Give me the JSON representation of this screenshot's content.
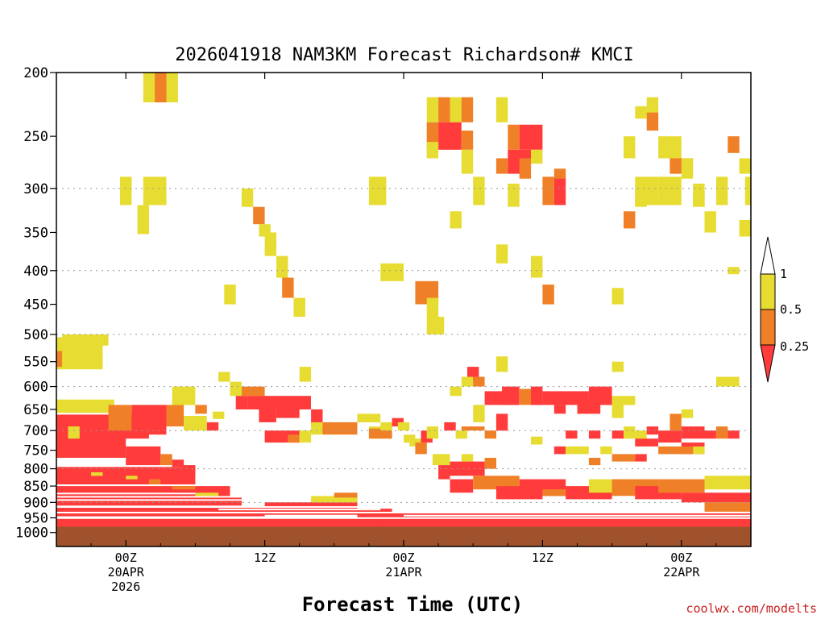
{
  "chart_data": {
    "type": "heatmap",
    "title": "2026041918 NAM3KM Forecast Richardson# KMCI",
    "xlabel": "Forecast Time (UTC)",
    "credit": "coolwx.com/modelts",
    "ylabel": "",
    "y_scale": "pressure (log, inverted)",
    "y_ticks": [
      "200",
      "250",
      "300",
      "350",
      "400",
      "450",
      "500",
      "550",
      "600",
      "650",
      "700",
      "750",
      "800",
      "850",
      "900",
      "950",
      "1000"
    ],
    "y_range_hpa": [
      1050,
      200
    ],
    "x_range_hours_from_init": [
      0,
      60
    ],
    "x_ticks": [
      {
        "hour": 6,
        "line1": "00Z",
        "line2": "20APR",
        "line3": "2026"
      },
      {
        "hour": 18,
        "line1": "12Z",
        "line2": "",
        "line3": ""
      },
      {
        "hour": 30,
        "line1": "00Z",
        "line2": "21APR",
        "line3": ""
      },
      {
        "hour": 42,
        "line1": "12Z",
        "line2": "",
        "line3": ""
      },
      {
        "hour": 54,
        "line1": "00Z",
        "line2": "22APR",
        "line3": ""
      }
    ],
    "dotted_grid_at_hpa": [
      300,
      400,
      500,
      600,
      700,
      800,
      900,
      1000
    ],
    "color_scale": [
      {
        "range": "< 0.25",
        "color": "#ff3b3b"
      },
      {
        "range": "0.25 - 0.5",
        "color": "#f08028"
      },
      {
        "range": "0.5 - 1",
        "color": "#e6dc32"
      },
      {
        "range": "> 1",
        "color": "#ffffff"
      }
    ],
    "colorbar_labels": [
      "1",
      "0.5",
      "0.25"
    ],
    "below_ground_color": "#a0522d",
    "below_ground_from_hpa": 980,
    "cells_note": "Each cell: [start_hour, end_hour, top_hpa, bottom_hpa, class]; class r=<0.25, o=0.25-0.5, y=0.5-1",
    "cells": [
      [
        0,
        4,
        505,
        565,
        "y"
      ],
      [
        0,
        0.5,
        530,
        560,
        "o"
      ],
      [
        0.5,
        2.5,
        500,
        560,
        "y"
      ],
      [
        2.5,
        4.5,
        500,
        520,
        "y"
      ],
      [
        7.5,
        8.5,
        200,
        222,
        "y"
      ],
      [
        8.5,
        9.5,
        200,
        222,
        "o"
      ],
      [
        9.5,
        10.5,
        200,
        222,
        "y"
      ],
      [
        5.5,
        6.5,
        288,
        318,
        "y"
      ],
      [
        7,
        8,
        318,
        352,
        "y"
      ],
      [
        7.5,
        9.5,
        288,
        318,
        "y"
      ],
      [
        0,
        5,
        628,
        658,
        "y"
      ],
      [
        0,
        8,
        662,
        720,
        "r"
      ],
      [
        4.5,
        6.5,
        640,
        700,
        "o"
      ],
      [
        6.5,
        9.5,
        640,
        710,
        "r"
      ],
      [
        9.5,
        11,
        640,
        690,
        "o"
      ],
      [
        10,
        12,
        600,
        640,
        "y"
      ],
      [
        12,
        13,
        640,
        660,
        "o"
      ],
      [
        11,
        13,
        665,
        700,
        "y"
      ],
      [
        13,
        14,
        680,
        700,
        "r"
      ],
      [
        0,
        6,
        700,
        770,
        "r"
      ],
      [
        1,
        2,
        690,
        720,
        "y"
      ],
      [
        6,
        9,
        740,
        790,
        "r"
      ],
      [
        9,
        10,
        760,
        790,
        "o"
      ],
      [
        10,
        11,
        775,
        795,
        "r"
      ],
      [
        11,
        12,
        790,
        820,
        "r"
      ],
      [
        0,
        12,
        795,
        845,
        "r"
      ],
      [
        0,
        15,
        850,
        880,
        "r"
      ],
      [
        0,
        16,
        885,
        910,
        "r"
      ],
      [
        0,
        18,
        915,
        945,
        "r"
      ],
      [
        0,
        60,
        950,
        985,
        "r"
      ],
      [
        3,
        4,
        810,
        820,
        "y"
      ],
      [
        6,
        7,
        820,
        830,
        "y"
      ],
      [
        8,
        9,
        830,
        845,
        "o"
      ],
      [
        10,
        12,
        850,
        860,
        "o"
      ],
      [
        12,
        14,
        870,
        880,
        "y"
      ],
      [
        13.5,
        14.5,
        655,
        672,
        "y"
      ],
      [
        14,
        15,
        570,
        590,
        "y"
      ],
      [
        15,
        16,
        590,
        620,
        "y"
      ],
      [
        15.5,
        16.5,
        620,
        650,
        "r"
      ],
      [
        16,
        18,
        600,
        620,
        "o"
      ],
      [
        16.5,
        20,
        620,
        650,
        "r"
      ],
      [
        17.5,
        19,
        650,
        680,
        "r"
      ],
      [
        19,
        21,
        640,
        670,
        "r"
      ],
      [
        18,
        21,
        700,
        730,
        "r"
      ],
      [
        20,
        21,
        710,
        730,
        "o"
      ],
      [
        21,
        22,
        700,
        730,
        "y"
      ],
      [
        20,
        22,
        620,
        650,
        "r"
      ],
      [
        22,
        23,
        650,
        690,
        "r"
      ],
      [
        16,
        17,
        300,
        320,
        "y"
      ],
      [
        17,
        18,
        320,
        340,
        "o"
      ],
      [
        17.5,
        18.5,
        340,
        355,
        "y"
      ],
      [
        18,
        19,
        350,
        380,
        "y"
      ],
      [
        19,
        20,
        380,
        410,
        "y"
      ],
      [
        19.5,
        20.5,
        410,
        440,
        "o"
      ],
      [
        20.5,
        21.5,
        440,
        470,
        "y"
      ],
      [
        21,
        22,
        560,
        590,
        "y"
      ],
      [
        14.5,
        15.5,
        420,
        450,
        "y"
      ],
      [
        22,
        23,
        680,
        710,
        "y"
      ],
      [
        23,
        26,
        680,
        710,
        "o"
      ],
      [
        26,
        28,
        660,
        680,
        "y"
      ],
      [
        27,
        29,
        690,
        720,
        "y"
      ],
      [
        26,
        29,
        920,
        960,
        "r"
      ],
      [
        28,
        60,
        930,
        985,
        "r"
      ],
      [
        18,
        26,
        900,
        940,
        "r"
      ],
      [
        22,
        26,
        880,
        900,
        "y"
      ],
      [
        24,
        26,
        870,
        885,
        "o"
      ],
      [
        27,
        29,
        695,
        720,
        "o"
      ],
      [
        28,
        29,
        680,
        700,
        "y"
      ],
      [
        29,
        30,
        670,
        690,
        "r"
      ],
      [
        29.5,
        30.5,
        680,
        700,
        "y"
      ],
      [
        30,
        31,
        710,
        730,
        "y"
      ],
      [
        30.5,
        31.5,
        720,
        740,
        "y"
      ],
      [
        31,
        32,
        730,
        760,
        "o"
      ],
      [
        31.5,
        32.5,
        700,
        730,
        "r"
      ],
      [
        32,
        33,
        690,
        720,
        "y"
      ],
      [
        32.5,
        34,
        760,
        790,
        "y"
      ],
      [
        33,
        34,
        790,
        830,
        "r"
      ],
      [
        34,
        37,
        780,
        820,
        "r"
      ],
      [
        35,
        36,
        760,
        780,
        "y"
      ],
      [
        37,
        38,
        770,
        800,
        "o"
      ],
      [
        34,
        35,
        600,
        620,
        "y"
      ],
      [
        33.5,
        34.5,
        680,
        700,
        "r"
      ],
      [
        34.5,
        35.5,
        700,
        720,
        "y"
      ],
      [
        35,
        37,
        690,
        700,
        "o"
      ],
      [
        34,
        36,
        830,
        870,
        "r"
      ],
      [
        36,
        40,
        820,
        860,
        "o"
      ],
      [
        38,
        42,
        850,
        890,
        "r"
      ],
      [
        40,
        44,
        830,
        880,
        "r"
      ],
      [
        42,
        44,
        860,
        880,
        "o"
      ],
      [
        44,
        48,
        850,
        890,
        "r"
      ],
      [
        46,
        50,
        830,
        870,
        "y"
      ],
      [
        48,
        52,
        830,
        880,
        "o"
      ],
      [
        50,
        54,
        850,
        890,
        "r"
      ],
      [
        52,
        56,
        830,
        870,
        "o"
      ],
      [
        56,
        60,
        820,
        860,
        "y"
      ],
      [
        54,
        60,
        870,
        900,
        "r"
      ],
      [
        56,
        60,
        900,
        930,
        "o"
      ],
      [
        31,
        33,
        415,
        450,
        "o"
      ],
      [
        32,
        33,
        440,
        470,
        "y"
      ],
      [
        32,
        33.5,
        470,
        500,
        "y"
      ],
      [
        28,
        30,
        390,
        415,
        "y"
      ],
      [
        27,
        28.5,
        288,
        318,
        "y"
      ],
      [
        32,
        33,
        218,
        238,
        "y"
      ],
      [
        33,
        34,
        218,
        238,
        "o"
      ],
      [
        34,
        35,
        218,
        238,
        "y"
      ],
      [
        35,
        36,
        218,
        238,
        "o"
      ],
      [
        32,
        33,
        238,
        262,
        "o"
      ],
      [
        33,
        35,
        238,
        262,
        "r"
      ],
      [
        35,
        36,
        245,
        262,
        "o"
      ],
      [
        32,
        33,
        255,
        270,
        "y"
      ],
      [
        35,
        36,
        262,
        285,
        "y"
      ],
      [
        34,
        35,
        325,
        345,
        "y"
      ],
      [
        36,
        37,
        288,
        318,
        "y"
      ],
      [
        35.5,
        36.5,
        560,
        590,
        "r"
      ],
      [
        35,
        36,
        580,
        600,
        "y"
      ],
      [
        36,
        37,
        580,
        600,
        "o"
      ],
      [
        38,
        39,
        540,
        570,
        "y"
      ],
      [
        37,
        39,
        610,
        640,
        "r"
      ],
      [
        38,
        39,
        660,
        700,
        "r"
      ],
      [
        37,
        38,
        700,
        720,
        "o"
      ],
      [
        36,
        37,
        640,
        680,
        "y"
      ],
      [
        38,
        39,
        218,
        238,
        "y"
      ],
      [
        38,
        39,
        270,
        285,
        "o"
      ],
      [
        39,
        40,
        240,
        262,
        "o"
      ],
      [
        39,
        41,
        262,
        285,
        "r"
      ],
      [
        40,
        41,
        270,
        290,
        "o"
      ],
      [
        40,
        42,
        240,
        262,
        "r"
      ],
      [
        41,
        42,
        262,
        275,
        "y"
      ],
      [
        39,
        40,
        295,
        320,
        "y"
      ],
      [
        38,
        39,
        365,
        390,
        "y"
      ],
      [
        41,
        42,
        380,
        410,
        "y"
      ],
      [
        42,
        43,
        420,
        450,
        "o"
      ],
      [
        42,
        43,
        288,
        318,
        "o"
      ],
      [
        43,
        44,
        288,
        318,
        "r"
      ],
      [
        43,
        44,
        280,
        290,
        "o"
      ],
      [
        38.5,
        40,
        600,
        640,
        "r"
      ],
      [
        40,
        41,
        605,
        640,
        "o"
      ],
      [
        41,
        42,
        600,
        640,
        "r"
      ],
      [
        42,
        46,
        610,
        640,
        "r"
      ],
      [
        46,
        48,
        600,
        640,
        "r"
      ],
      [
        48,
        49,
        620,
        660,
        "y"
      ],
      [
        49,
        50,
        620,
        640,
        "y"
      ],
      [
        45,
        47,
        630,
        660,
        "r"
      ],
      [
        43,
        44,
        640,
        660,
        "r"
      ],
      [
        44,
        45,
        700,
        720,
        "r"
      ],
      [
        46,
        47,
        700,
        720,
        "r"
      ],
      [
        48,
        49,
        700,
        720,
        "r"
      ],
      [
        50,
        51,
        700,
        720,
        "y"
      ],
      [
        50,
        51,
        720,
        740,
        "y"
      ],
      [
        41,
        42,
        715,
        735,
        "y"
      ],
      [
        43,
        44,
        740,
        760,
        "r"
      ],
      [
        44,
        46,
        740,
        760,
        "y"
      ],
      [
        47,
        48,
        740,
        760,
        "y"
      ],
      [
        46,
        47,
        770,
        790,
        "o"
      ],
      [
        48,
        50,
        760,
        780,
        "o"
      ],
      [
        50,
        51,
        760,
        780,
        "r"
      ],
      [
        49,
        50,
        690,
        720,
        "y"
      ],
      [
        48,
        49,
        425,
        450,
        "y"
      ],
      [
        48,
        49,
        550,
        570,
        "y"
      ],
      [
        48,
        49,
        650,
        670,
        "y"
      ],
      [
        49,
        50,
        250,
        270,
        "y"
      ],
      [
        49,
        50,
        325,
        345,
        "o"
      ],
      [
        50,
        51,
        300,
        320,
        "y"
      ],
      [
        50,
        52,
        288,
        318,
        "y"
      ],
      [
        51,
        52,
        218,
        238,
        "y"
      ],
      [
        51,
        52,
        230,
        245,
        "o"
      ],
      [
        50,
        51,
        225,
        235,
        "y"
      ],
      [
        52,
        54,
        288,
        318,
        "y"
      ],
      [
        52,
        53,
        250,
        270,
        "y"
      ],
      [
        53,
        54,
        250,
        285,
        "y"
      ],
      [
        53,
        55,
        270,
        285,
        "o"
      ],
      [
        54,
        55,
        270,
        290,
        "y"
      ],
      [
        55,
        56,
        295,
        320,
        "y"
      ],
      [
        55,
        56,
        305,
        320,
        "y"
      ],
      [
        56,
        57,
        325,
        350,
        "y"
      ],
      [
        57,
        58,
        288,
        318,
        "y"
      ],
      [
        58,
        59,
        250,
        265,
        "o"
      ],
      [
        59,
        60,
        270,
        285,
        "y"
      ],
      [
        59,
        60,
        335,
        355,
        "y"
      ],
      [
        58,
        59,
        395,
        405,
        "y"
      ],
      [
        59.5,
        60,
        288,
        318,
        "y"
      ],
      [
        57,
        59,
        580,
        600,
        "y"
      ],
      [
        51,
        52,
        690,
        710,
        "r"
      ],
      [
        52,
        54,
        700,
        730,
        "r"
      ],
      [
        53,
        54,
        680,
        700,
        "o"
      ],
      [
        54,
        56,
        690,
        720,
        "r"
      ],
      [
        54,
        55,
        650,
        670,
        "y"
      ],
      [
        53,
        54,
        660,
        680,
        "o"
      ],
      [
        56,
        57,
        700,
        720,
        "r"
      ],
      [
        57,
        58,
        690,
        720,
        "o"
      ],
      [
        58,
        59,
        700,
        720,
        "r"
      ],
      [
        50,
        52,
        720,
        740,
        "r"
      ],
      [
        54,
        56,
        730,
        760,
        "r"
      ],
      [
        52,
        55,
        740,
        760,
        "o"
      ],
      [
        55,
        56,
        740,
        760,
        "y"
      ]
    ]
  }
}
